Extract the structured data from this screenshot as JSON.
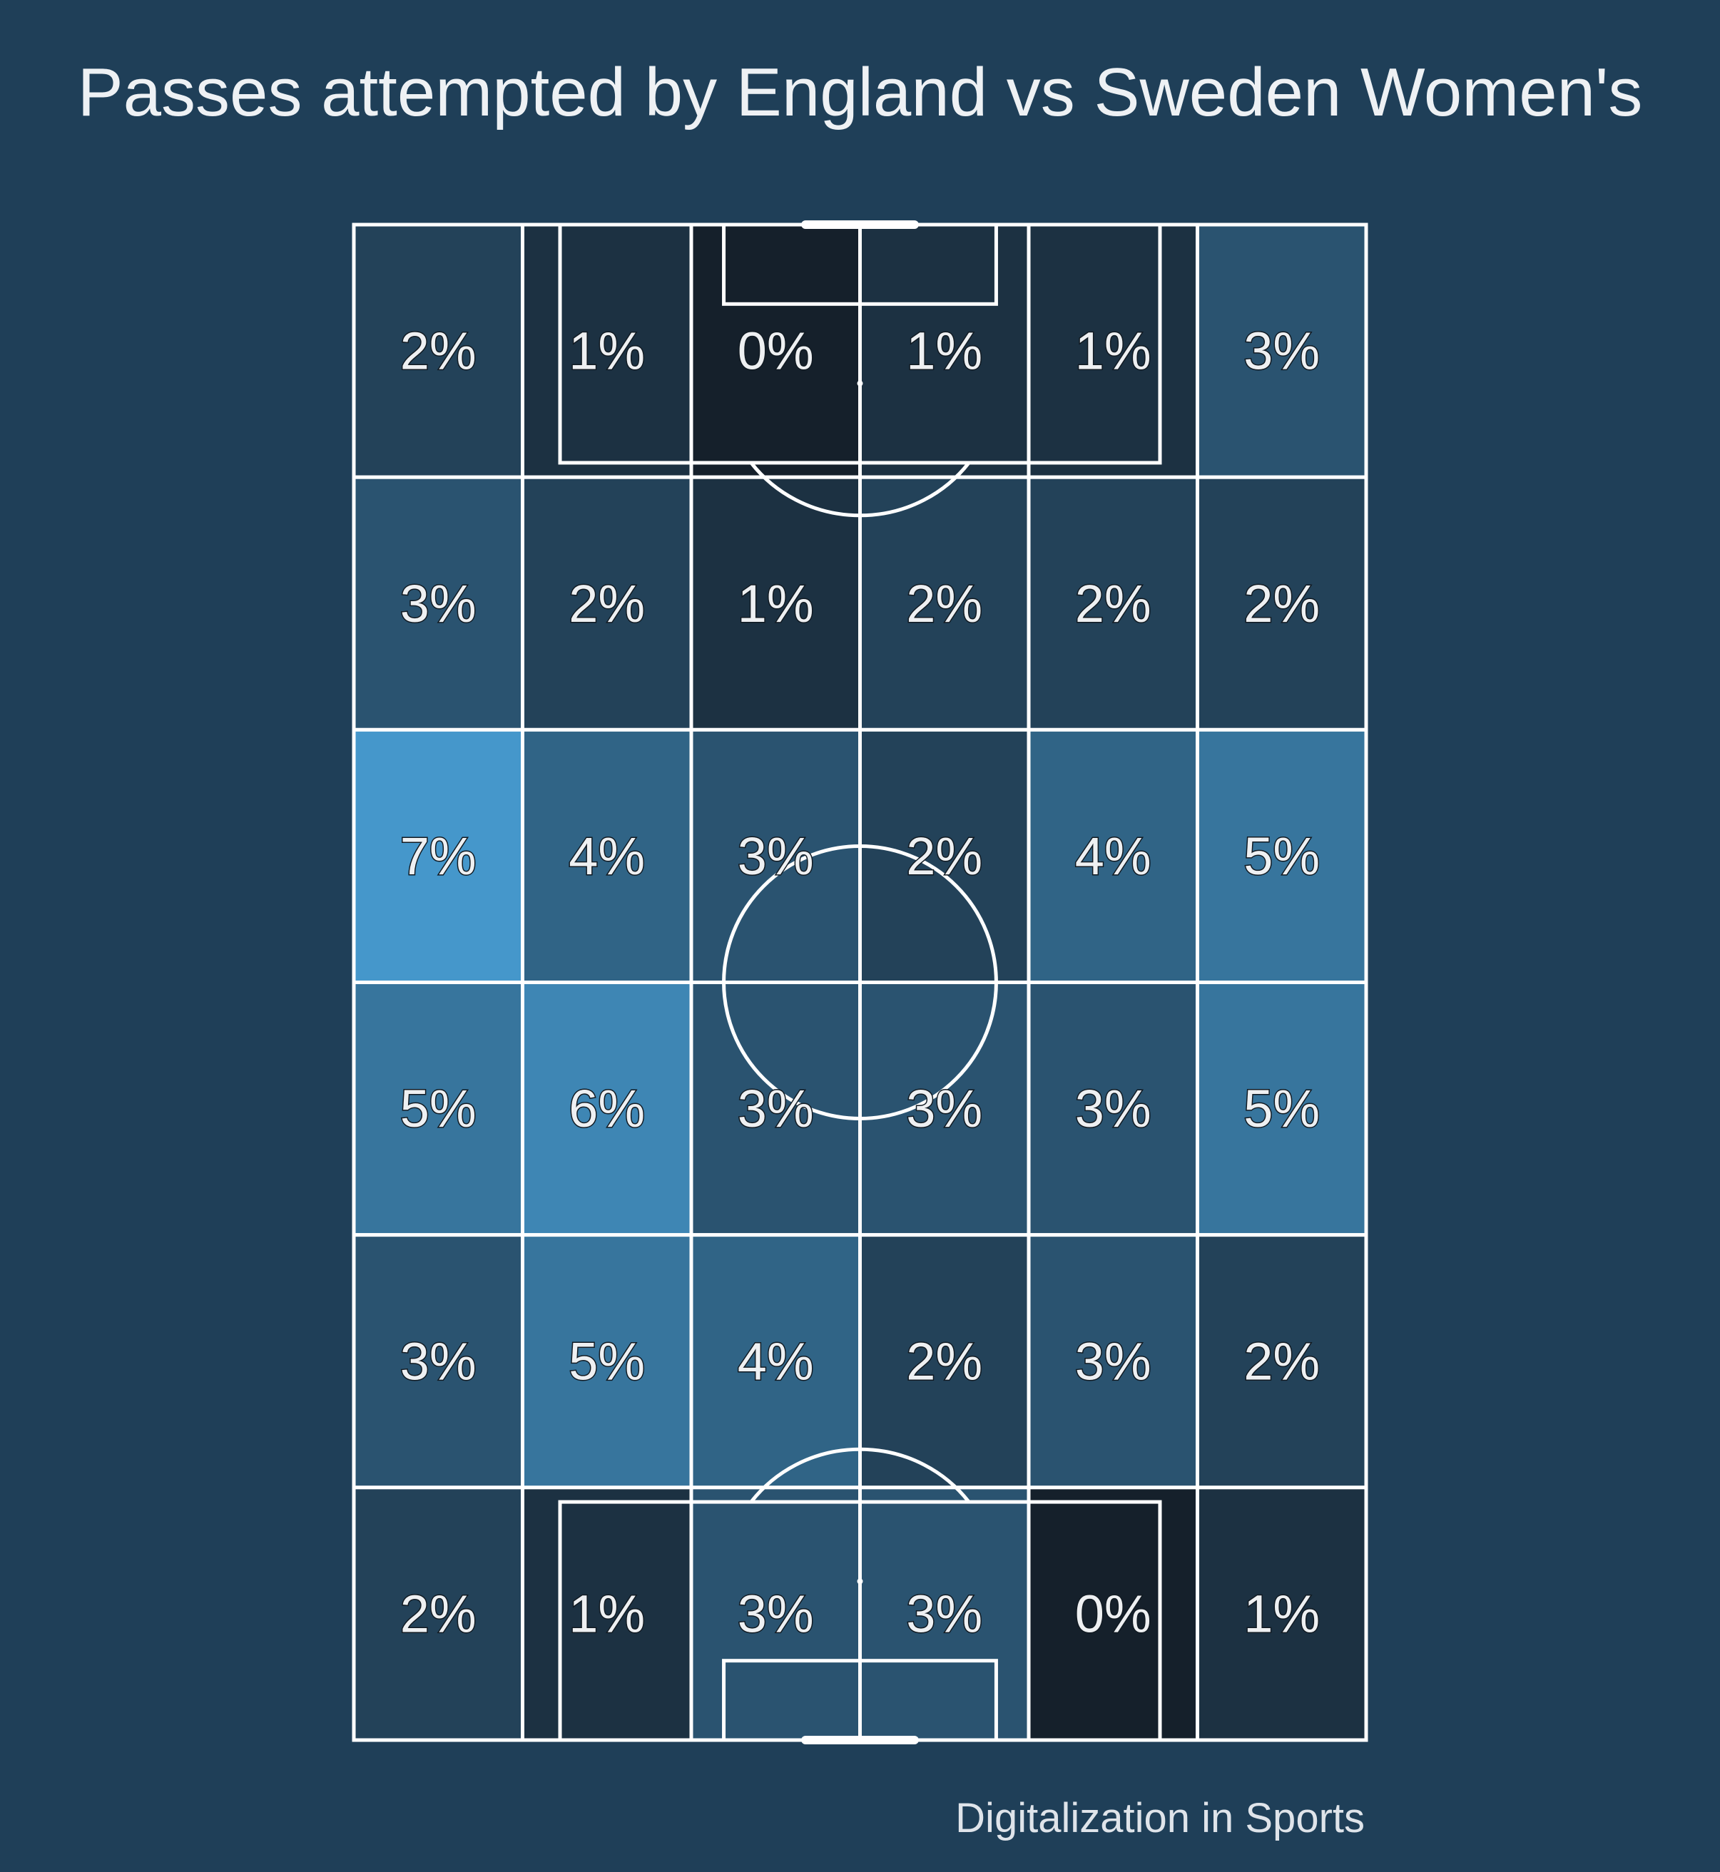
{
  "title": "Passes attempted by England vs Sweden Women's",
  "credit": "Digitalization in Sports",
  "colors": {
    "background": "#1f3f58",
    "line": "#ffffff",
    "low": "#15202b",
    "high": "#4597cb"
  },
  "chart_data": {
    "type": "heatmap",
    "title": "Passes attempted by England vs Sweden Women's",
    "rows": 6,
    "cols": 6,
    "unit": "%",
    "values": [
      [
        2,
        1,
        0,
        1,
        1,
        3
      ],
      [
        3,
        2,
        1,
        2,
        2,
        2
      ],
      [
        7,
        4,
        3,
        2,
        4,
        5
      ],
      [
        5,
        6,
        3,
        3,
        3,
        5
      ],
      [
        3,
        5,
        4,
        2,
        3,
        2
      ],
      [
        2,
        1,
        3,
        3,
        0,
        1
      ]
    ],
    "labels": [
      [
        "2%",
        "1%",
        "0%",
        "1%",
        "1%",
        "3%"
      ],
      [
        "3%",
        "2%",
        "1%",
        "2%",
        "2%",
        "2%"
      ],
      [
        "7%",
        "4%",
        "3%",
        "2%",
        "4%",
        "5%"
      ],
      [
        "5%",
        "6%",
        "3%",
        "3%",
        "3%",
        "5%"
      ],
      [
        "3%",
        "5%",
        "4%",
        "2%",
        "3%",
        "2%"
      ],
      [
        "2%",
        "1%",
        "3%",
        "3%",
        "0%",
        "1%"
      ]
    ]
  }
}
